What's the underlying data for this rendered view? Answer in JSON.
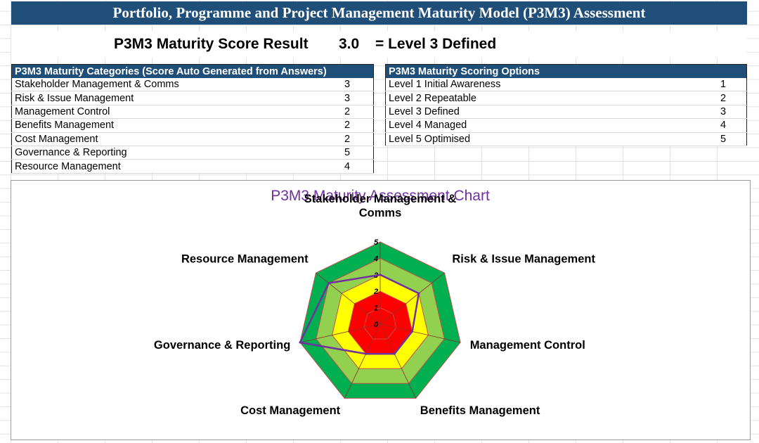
{
  "header": {
    "title": "Portfolio, Programme and Project Management Maturity Model (P3M3) Assessment"
  },
  "score": {
    "label": "P3M3 Maturity Score Result",
    "value": "3.0",
    "result": "= Level 3 Defined"
  },
  "categories_table": {
    "header": "P3M3 Maturity Categories (Score Auto Generated from Answers)",
    "rows": [
      {
        "label": "Stakeholder Management & Comms",
        "score": "3"
      },
      {
        "label": "Risk & Issue Management",
        "score": "3"
      },
      {
        "label": "Management Control",
        "score": "2"
      },
      {
        "label": "Benefits Management",
        "score": "2"
      },
      {
        "label": "Cost Management",
        "score": "2"
      },
      {
        "label": "Governance & Reporting",
        "score": "5"
      },
      {
        "label": "Resource Management",
        "score": "4"
      }
    ]
  },
  "options_table": {
    "header": "P3M3 Maturity Scoring Options",
    "rows": [
      {
        "label": "Level 1 Initial Awareness",
        "score": "1"
      },
      {
        "label": "Level 2 Repeatable",
        "score": "2"
      },
      {
        "label": "Level 3 Defined",
        "score": "3"
      },
      {
        "label": "Level 4 Managed",
        "score": "4"
      },
      {
        "label": "Level 5 Optimised",
        "score": "5"
      }
    ]
  },
  "chart_data": {
    "type": "radar",
    "title": "P3M3 Maturity Assessment Chart",
    "axes": [
      "Stakeholder Management & Comms",
      "Risk & Issue Management",
      "Management Control",
      "Benefits Management",
      "Cost Management",
      "Governance & Reporting",
      "Resource Management"
    ],
    "values": [
      3,
      3,
      2,
      2,
      2,
      5,
      4
    ],
    "range": [
      0,
      5
    ],
    "ticks": [
      "0",
      "1",
      "2",
      "3",
      "4",
      "5"
    ],
    "band_colors": [
      "#ff0000",
      "#ff0000",
      "#ffff00",
      "#92d050",
      "#00b050"
    ],
    "series_color": "#7030a0",
    "title_color": "#7030a0"
  }
}
